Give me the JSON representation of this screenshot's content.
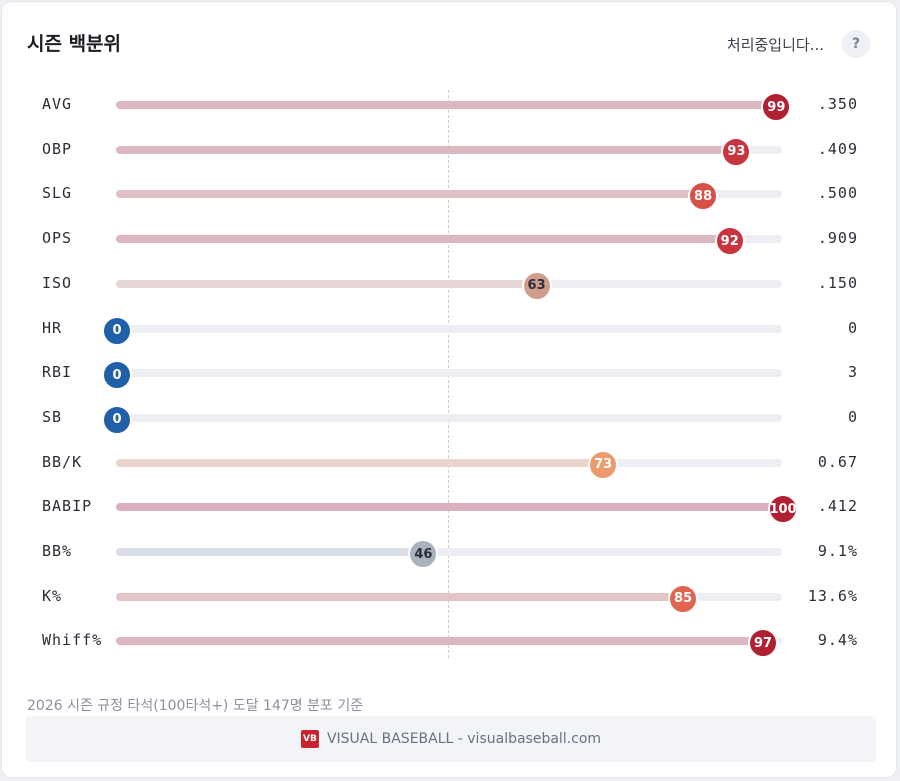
{
  "header": {
    "title": "시즌 백분위",
    "status": "처리중입니다...",
    "help_label": "?"
  },
  "rows": [
    {
      "label": "AVG",
      "percentile": 99,
      "value": ".350",
      "dot_color": "#b11f33",
      "fill_color": "#ddb7c0"
    },
    {
      "label": "OBP",
      "percentile": 93,
      "value": ".409",
      "dot_color": "#c9343e",
      "fill_color": "#ddb7c0"
    },
    {
      "label": "SLG",
      "percentile": 88,
      "value": ".500",
      "dot_color": "#d75048",
      "fill_color": "#e0c0c4"
    },
    {
      "label": "OPS",
      "percentile": 92,
      "value": ".909",
      "dot_color": "#c9343e",
      "fill_color": "#ddb7c0"
    },
    {
      "label": "ISO",
      "percentile": 63,
      "value": ".150",
      "dot_color": "#cf9d8c",
      "fill_color": "#e6d6d5",
      "dark_text": true
    },
    {
      "label": "HR",
      "percentile": 0,
      "value": "0",
      "dot_color": "#2060a9",
      "fill_color": "#eceef3"
    },
    {
      "label": "RBI",
      "percentile": 0,
      "value": "3",
      "dot_color": "#2060a9",
      "fill_color": "#eceef3"
    },
    {
      "label": "SB",
      "percentile": 0,
      "value": "0",
      "dot_color": "#2060a9",
      "fill_color": "#eceef3"
    },
    {
      "label": "BB/K",
      "percentile": 73,
      "value": "0.67",
      "dot_color": "#ec9a6c",
      "fill_color": "#ebd4cb"
    },
    {
      "label": "BABIP",
      "percentile": 100,
      "value": ".412",
      "dot_color": "#b11f33",
      "fill_color": "#dcb1bd"
    },
    {
      "label": "BB%",
      "percentile": 46,
      "value": "9.1%",
      "dot_color": "#a9b2bd",
      "fill_color": "#d9dee4",
      "dark_text": true
    },
    {
      "label": "K%",
      "percentile": 85,
      "value": "13.6%",
      "dot_color": "#e06550",
      "fill_color": "#e4c5c6"
    },
    {
      "label": "Whiff%",
      "percentile": 97,
      "value": "9.4%",
      "dot_color": "#b11f33",
      "fill_color": "#ddb7c0"
    }
  ],
  "footnote": "2026 시즌 규정 타석(100타석+) 도달 147명 분포 기준",
  "brand": {
    "logo_text": "VB",
    "text": "VISUAL BASEBALL - visualbaseball.com"
  }
}
